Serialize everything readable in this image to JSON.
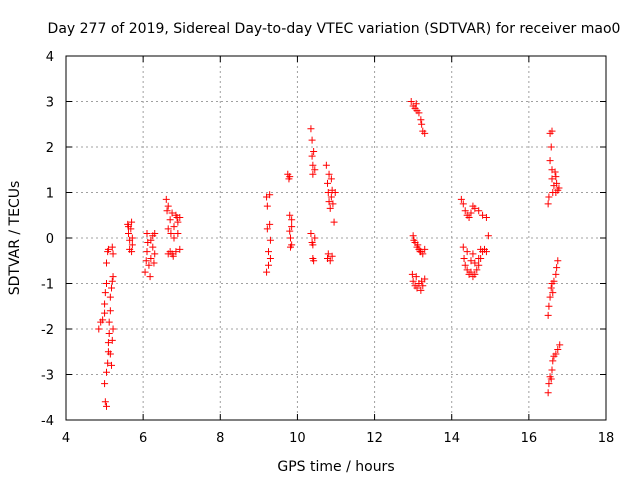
{
  "chart_data": {
    "type": "scatter",
    "title": "Day 277 of 2019, Sidereal Day-to-day VTEC variation (SDTVAR) for receiver mao0",
    "xlabel": "GPS time / hours",
    "ylabel": "SDTVAR / TECUs",
    "xlim": [
      4,
      18
    ],
    "ylim": [
      -4,
      4
    ],
    "xticks": [
      "4",
      "6",
      "8",
      "10",
      "12",
      "14",
      "16",
      "18"
    ],
    "yticks": [
      "-4",
      "-3",
      "-2",
      "-1",
      "0",
      "1",
      "2",
      "3",
      "4"
    ],
    "grid": true,
    "marker": "+",
    "color": "#ff0000",
    "series": [
      {
        "name": "SDTVAR",
        "points": [
          [
            4.85,
            -2.0
          ],
          [
            4.9,
            -1.85
          ],
          [
            4.95,
            -1.8
          ],
          [
            5.0,
            -1.65
          ],
          [
            5.0,
            -1.45
          ],
          [
            5.02,
            -1.2
          ],
          [
            5.05,
            -1.0
          ],
          [
            5.05,
            -0.55
          ],
          [
            5.08,
            -0.3
          ],
          [
            5.1,
            -0.25
          ],
          [
            5.0,
            -3.2
          ],
          [
            5.02,
            -3.6
          ],
          [
            5.05,
            -3.7
          ],
          [
            5.05,
            -2.95
          ],
          [
            5.08,
            -2.75
          ],
          [
            5.1,
            -2.5
          ],
          [
            5.1,
            -2.3
          ],
          [
            5.12,
            -2.1
          ],
          [
            5.12,
            -1.85
          ],
          [
            5.15,
            -1.6
          ],
          [
            5.15,
            -1.3
          ],
          [
            5.18,
            -1.1
          ],
          [
            5.2,
            -0.95
          ],
          [
            5.22,
            -0.85
          ],
          [
            5.2,
            -2.25
          ],
          [
            5.15,
            -2.55
          ],
          [
            5.18,
            -2.8
          ],
          [
            5.22,
            -2.0
          ],
          [
            5.2,
            -0.2
          ],
          [
            5.22,
            -0.35
          ],
          [
            5.6,
            0.3
          ],
          [
            5.62,
            0.1
          ],
          [
            5.65,
            -0.05
          ],
          [
            5.65,
            -0.25
          ],
          [
            5.68,
            0.2
          ],
          [
            5.7,
            0.35
          ],
          [
            5.72,
            0.0
          ],
          [
            5.72,
            -0.15
          ],
          [
            5.62,
            0.25
          ],
          [
            5.7,
            -0.3
          ],
          [
            6.05,
            -0.75
          ],
          [
            6.08,
            -0.5
          ],
          [
            6.1,
            -0.3
          ],
          [
            6.1,
            0.1
          ],
          [
            6.12,
            -0.1
          ],
          [
            6.15,
            -0.6
          ],
          [
            6.2,
            -0.45
          ],
          [
            6.2,
            -0.05
          ],
          [
            6.25,
            0.05
          ],
          [
            6.25,
            -0.2
          ],
          [
            6.3,
            -0.35
          ],
          [
            6.3,
            0.1
          ],
          [
            6.18,
            -0.85
          ],
          [
            6.28,
            -0.55
          ],
          [
            6.6,
            0.85
          ],
          [
            6.62,
            0.6
          ],
          [
            6.65,
            0.7
          ],
          [
            6.65,
            0.2
          ],
          [
            6.7,
            0.4
          ],
          [
            6.7,
            -0.3
          ],
          [
            6.75,
            0.55
          ],
          [
            6.75,
            -0.35
          ],
          [
            6.8,
            0.0
          ],
          [
            6.8,
            0.25
          ],
          [
            6.85,
            0.5
          ],
          [
            6.85,
            -0.3
          ],
          [
            6.9,
            0.35
          ],
          [
            6.9,
            0.1
          ],
          [
            6.95,
            0.45
          ],
          [
            6.95,
            -0.25
          ],
          [
            6.65,
            -0.35
          ],
          [
            6.72,
            0.1
          ],
          [
            6.88,
            0.45
          ],
          [
            6.78,
            -0.4
          ],
          [
            9.2,
            0.9
          ],
          [
            9.22,
            0.7
          ],
          [
            9.22,
            0.2
          ],
          [
            9.25,
            -0.3
          ],
          [
            9.25,
            -0.6
          ],
          [
            9.2,
            -0.75
          ],
          [
            9.28,
            0.95
          ],
          [
            9.28,
            0.3
          ],
          [
            9.3,
            -0.05
          ],
          [
            9.3,
            -0.45
          ],
          [
            9.75,
            1.4
          ],
          [
            9.78,
            1.3
          ],
          [
            9.8,
            0.5
          ],
          [
            9.8,
            0.15
          ],
          [
            9.82,
            0.0
          ],
          [
            9.82,
            -0.2
          ],
          [
            9.85,
            0.4
          ],
          [
            9.85,
            -0.15
          ],
          [
            9.8,
            1.35
          ],
          [
            9.85,
            0.25
          ],
          [
            10.35,
            2.4
          ],
          [
            10.38,
            2.15
          ],
          [
            10.38,
            1.8
          ],
          [
            10.4,
            1.6
          ],
          [
            10.4,
            1.4
          ],
          [
            10.42,
            1.9
          ],
          [
            10.45,
            1.5
          ],
          [
            10.35,
            0.1
          ],
          [
            10.38,
            -0.1
          ],
          [
            10.4,
            -0.45
          ],
          [
            10.42,
            -0.5
          ],
          [
            10.45,
            0.0
          ],
          [
            10.4,
            -0.15
          ],
          [
            10.75,
            1.6
          ],
          [
            10.78,
            1.2
          ],
          [
            10.8,
            1.0
          ],
          [
            10.82,
            0.8
          ],
          [
            10.85,
            0.65
          ],
          [
            10.88,
            0.9
          ],
          [
            10.9,
            1.05
          ],
          [
            10.92,
            0.75
          ],
          [
            10.95,
            0.35
          ],
          [
            10.98,
            1.0
          ],
          [
            10.8,
            -0.35
          ],
          [
            10.85,
            -0.5
          ],
          [
            10.9,
            -0.4
          ],
          [
            10.82,
            1.4
          ],
          [
            10.88,
            1.3
          ],
          [
            10.78,
            -0.45
          ],
          [
            12.95,
            3.0
          ],
          [
            13.0,
            2.9
          ],
          [
            13.05,
            2.85
          ],
          [
            13.1,
            2.8
          ],
          [
            13.15,
            2.75
          ],
          [
            13.2,
            2.6
          ],
          [
            13.22,
            2.5
          ],
          [
            13.25,
            2.35
          ],
          [
            13.3,
            2.3
          ],
          [
            13.08,
            2.95
          ],
          [
            13.0,
            0.05
          ],
          [
            13.05,
            -0.1
          ],
          [
            13.1,
            -0.2
          ],
          [
            13.15,
            -0.25
          ],
          [
            13.2,
            -0.3
          ],
          [
            13.25,
            -0.35
          ],
          [
            13.3,
            -0.25
          ],
          [
            13.02,
            -0.05
          ],
          [
            13.18,
            -0.3
          ],
          [
            13.12,
            -0.15
          ],
          [
            12.98,
            -0.8
          ],
          [
            13.0,
            -0.95
          ],
          [
            13.05,
            -1.05
          ],
          [
            13.1,
            -1.1
          ],
          [
            13.15,
            -1.0
          ],
          [
            13.2,
            -1.15
          ],
          [
            13.25,
            -1.05
          ],
          [
            13.3,
            -0.9
          ],
          [
            13.08,
            -0.85
          ],
          [
            13.22,
            -0.95
          ],
          [
            14.25,
            0.85
          ],
          [
            14.3,
            0.75
          ],
          [
            14.35,
            0.6
          ],
          [
            14.4,
            0.5
          ],
          [
            14.45,
            0.45
          ],
          [
            14.5,
            0.55
          ],
          [
            14.55,
            0.7
          ],
          [
            14.6,
            0.65
          ],
          [
            14.7,
            0.6
          ],
          [
            14.8,
            0.5
          ],
          [
            14.9,
            0.45
          ],
          [
            14.95,
            0.05
          ],
          [
            14.3,
            -0.2
          ],
          [
            14.32,
            -0.45
          ],
          [
            14.35,
            -0.6
          ],
          [
            14.4,
            -0.7
          ],
          [
            14.45,
            -0.8
          ],
          [
            14.5,
            -0.75
          ],
          [
            14.55,
            -0.85
          ],
          [
            14.6,
            -0.8
          ],
          [
            14.65,
            -0.7
          ],
          [
            14.7,
            -0.6
          ],
          [
            14.75,
            -0.45
          ],
          [
            14.8,
            -0.3
          ],
          [
            14.85,
            -0.25
          ],
          [
            14.9,
            -0.3
          ],
          [
            14.4,
            -0.3
          ],
          [
            14.5,
            -0.5
          ],
          [
            14.6,
            -0.55
          ],
          [
            14.7,
            -0.45
          ],
          [
            14.75,
            -0.25
          ],
          [
            14.55,
            -0.35
          ],
          [
            16.5,
            0.75
          ],
          [
            16.52,
            0.9
          ],
          [
            16.55,
            1.7
          ],
          [
            16.55,
            2.3
          ],
          [
            16.58,
            2.0
          ],
          [
            16.6,
            1.5
          ],
          [
            16.6,
            1.3
          ],
          [
            16.62,
            1.0
          ],
          [
            16.65,
            1.15
          ],
          [
            16.68,
            1.45
          ],
          [
            16.7,
            1.35
          ],
          [
            16.72,
            1.2
          ],
          [
            16.75,
            1.05
          ],
          [
            16.78,
            1.1
          ],
          [
            16.6,
            2.35
          ],
          [
            16.7,
            1.0
          ],
          [
            16.5,
            -1.7
          ],
          [
            16.52,
            -1.5
          ],
          [
            16.55,
            -1.3
          ],
          [
            16.58,
            -1.1
          ],
          [
            16.6,
            -1.0
          ],
          [
            16.65,
            -0.95
          ],
          [
            16.7,
            -0.8
          ],
          [
            16.72,
            -0.65
          ],
          [
            16.75,
            -0.5
          ],
          [
            16.62,
            -1.2
          ],
          [
            16.5,
            -3.4
          ],
          [
            16.52,
            -3.2
          ],
          [
            16.55,
            -3.05
          ],
          [
            16.6,
            -2.9
          ],
          [
            16.62,
            -2.7
          ],
          [
            16.65,
            -2.6
          ],
          [
            16.7,
            -2.55
          ],
          [
            16.75,
            -2.45
          ],
          [
            16.8,
            -2.35
          ],
          [
            16.58,
            -3.1
          ]
        ]
      }
    ]
  }
}
